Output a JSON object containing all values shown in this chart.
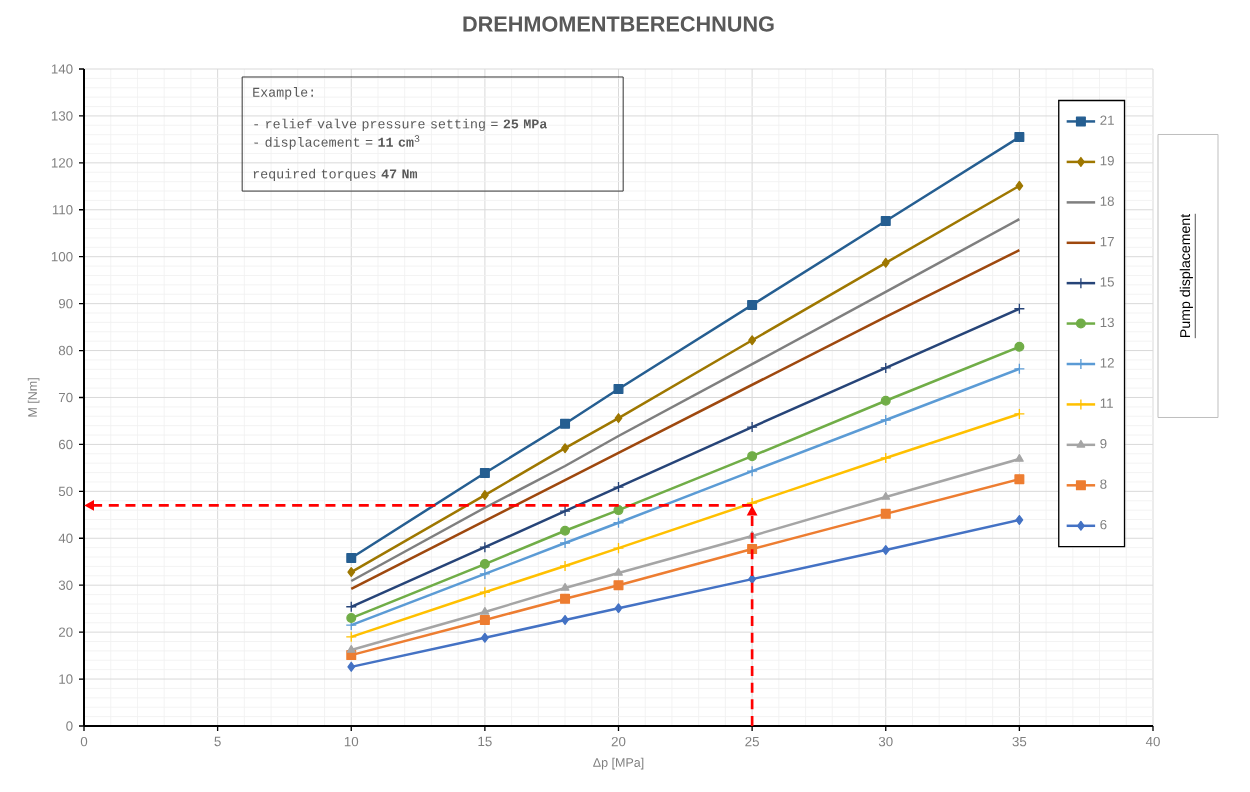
{
  "chart_data": {
    "type": "line",
    "title": "DREHMOMENTBERECHNUNG",
    "xlabel": "Δp [MPa]",
    "ylabel": "M [Nm]",
    "legend_title": "Pump displacement",
    "annotations": [
      "Example:",
      "- relief valve pressure setting = **25 MPa**",
      "- displacement = **11 cm**$^{3}$",
      "required torques **47 Nm**"
    ],
    "x": [
      10,
      15,
      18,
      20,
      25,
      30,
      35
    ],
    "series": [
      {
        "name": "21",
        "color": "#255e91",
        "marker": "square",
        "values": [
          35.8,
          53.9,
          64.4,
          71.8,
          89.7,
          107.6,
          125.5
        ]
      },
      {
        "name": "19",
        "color": "#9e7700",
        "marker": "diamond",
        "values": [
          32.8,
          49.2,
          59.2,
          65.6,
          82.2,
          98.7,
          115.1
        ]
      },
      {
        "name": "18",
        "color": "#7f7f7f",
        "marker": "none",
        "values": [
          30.9,
          46.5,
          55.4,
          61.8,
          77.1,
          92.5,
          108.0
        ]
      },
      {
        "name": "17",
        "color": "#9e480e",
        "marker": "none",
        "values": [
          29.2,
          43.7,
          52.4,
          58.2,
          72.7,
          87.2,
          101.4
        ]
      },
      {
        "name": "15",
        "color": "#264478",
        "marker": "cross",
        "values": [
          25.4,
          38.1,
          45.8,
          50.9,
          63.7,
          76.3,
          88.9
        ]
      },
      {
        "name": "13",
        "color": "#70ad47",
        "marker": "circle",
        "values": [
          23.0,
          34.5,
          41.6,
          46.0,
          57.5,
          69.3,
          80.8
        ]
      },
      {
        "name": "12",
        "color": "#5b9bd5",
        "marker": "cross",
        "values": [
          21.5,
          32.4,
          39.0,
          43.3,
          54.3,
          65.2,
          76.1
        ]
      },
      {
        "name": "11",
        "color": "#ffc000",
        "marker": "cross",
        "values": [
          19.0,
          28.5,
          34.1,
          37.9,
          47.5,
          57.1,
          66.5
        ]
      },
      {
        "name": "9",
        "color": "#a5a5a5",
        "marker": "triangle",
        "values": [
          16.2,
          24.3,
          29.4,
          32.6,
          40.5,
          48.8,
          56.9
        ]
      },
      {
        "name": "8",
        "color": "#ed7d31",
        "marker": "square",
        "values": [
          15.1,
          22.6,
          27.1,
          30.0,
          37.7,
          45.2,
          52.6
        ]
      },
      {
        "name": "6",
        "color": "#4472c4",
        "marker": "diamond",
        "values": [
          12.6,
          18.8,
          22.6,
          25.1,
          31.3,
          37.5,
          43.9
        ]
      }
    ],
    "ref_lines": [
      {
        "axis": "x",
        "value": 25,
        "color": "#ff0000",
        "line_style": "dashed"
      },
      {
        "axis": "y",
        "value": 47,
        "color": "#ff0000",
        "line_style": "dashed"
      }
    ],
    "xlim": [
      0,
      40
    ],
    "ylim": [
      0,
      140
    ],
    "xticks": [
      0,
      5,
      10,
      15,
      20,
      25,
      30,
      35,
      40
    ],
    "yticks": [
      0,
      10,
      20,
      30,
      40,
      50,
      60,
      70,
      80,
      90,
      100,
      110,
      120,
      130,
      140
    ],
    "grid": true,
    "legend": "top right",
    "line_style": "solid"
  }
}
